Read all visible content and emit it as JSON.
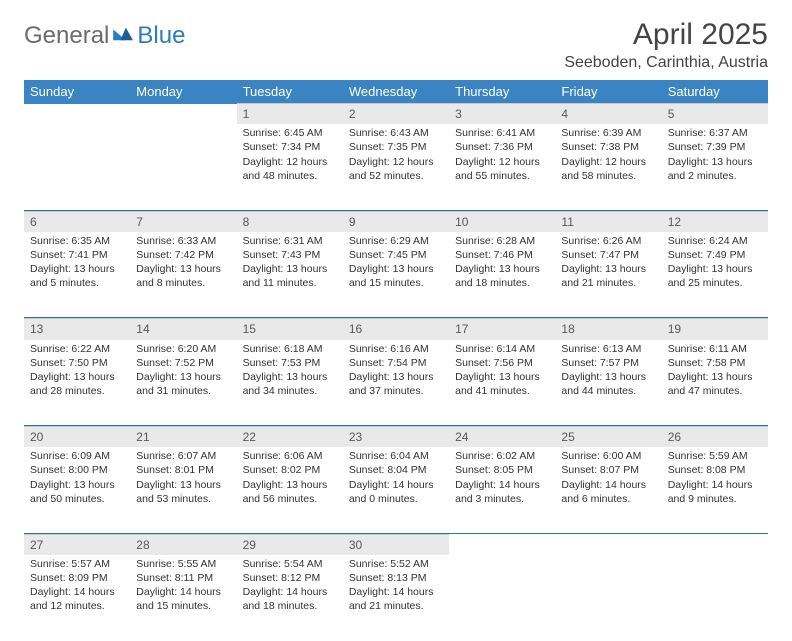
{
  "branding": {
    "word1": "General",
    "word2": "Blue"
  },
  "title": "April 2025",
  "location": "Seeboden, Carinthia, Austria",
  "colors": {
    "header_bg": "#3b84c4",
    "header_text": "#ffffff",
    "daynum_bg": "#e9e9e9",
    "week_separator": "#2f6ea6",
    "logo_grey": "#6b6b6b",
    "logo_blue": "#2f7bbf"
  },
  "day_headers": [
    "Sunday",
    "Monday",
    "Tuesday",
    "Wednesday",
    "Thursday",
    "Friday",
    "Saturday"
  ],
  "weeks": [
    [
      null,
      null,
      {
        "n": "1",
        "sr": "Sunrise: 6:45 AM",
        "ss": "Sunset: 7:34 PM",
        "dl": "Daylight: 12 hours and 48 minutes."
      },
      {
        "n": "2",
        "sr": "Sunrise: 6:43 AM",
        "ss": "Sunset: 7:35 PM",
        "dl": "Daylight: 12 hours and 52 minutes."
      },
      {
        "n": "3",
        "sr": "Sunrise: 6:41 AM",
        "ss": "Sunset: 7:36 PM",
        "dl": "Daylight: 12 hours and 55 minutes."
      },
      {
        "n": "4",
        "sr": "Sunrise: 6:39 AM",
        "ss": "Sunset: 7:38 PM",
        "dl": "Daylight: 12 hours and 58 minutes."
      },
      {
        "n": "5",
        "sr": "Sunrise: 6:37 AM",
        "ss": "Sunset: 7:39 PM",
        "dl": "Daylight: 13 hours and 2 minutes."
      }
    ],
    [
      {
        "n": "6",
        "sr": "Sunrise: 6:35 AM",
        "ss": "Sunset: 7:41 PM",
        "dl": "Daylight: 13 hours and 5 minutes."
      },
      {
        "n": "7",
        "sr": "Sunrise: 6:33 AM",
        "ss": "Sunset: 7:42 PM",
        "dl": "Daylight: 13 hours and 8 minutes."
      },
      {
        "n": "8",
        "sr": "Sunrise: 6:31 AM",
        "ss": "Sunset: 7:43 PM",
        "dl": "Daylight: 13 hours and 11 minutes."
      },
      {
        "n": "9",
        "sr": "Sunrise: 6:29 AM",
        "ss": "Sunset: 7:45 PM",
        "dl": "Daylight: 13 hours and 15 minutes."
      },
      {
        "n": "10",
        "sr": "Sunrise: 6:28 AM",
        "ss": "Sunset: 7:46 PM",
        "dl": "Daylight: 13 hours and 18 minutes."
      },
      {
        "n": "11",
        "sr": "Sunrise: 6:26 AM",
        "ss": "Sunset: 7:47 PM",
        "dl": "Daylight: 13 hours and 21 minutes."
      },
      {
        "n": "12",
        "sr": "Sunrise: 6:24 AM",
        "ss": "Sunset: 7:49 PM",
        "dl": "Daylight: 13 hours and 25 minutes."
      }
    ],
    [
      {
        "n": "13",
        "sr": "Sunrise: 6:22 AM",
        "ss": "Sunset: 7:50 PM",
        "dl": "Daylight: 13 hours and 28 minutes."
      },
      {
        "n": "14",
        "sr": "Sunrise: 6:20 AM",
        "ss": "Sunset: 7:52 PM",
        "dl": "Daylight: 13 hours and 31 minutes."
      },
      {
        "n": "15",
        "sr": "Sunrise: 6:18 AM",
        "ss": "Sunset: 7:53 PM",
        "dl": "Daylight: 13 hours and 34 minutes."
      },
      {
        "n": "16",
        "sr": "Sunrise: 6:16 AM",
        "ss": "Sunset: 7:54 PM",
        "dl": "Daylight: 13 hours and 37 minutes."
      },
      {
        "n": "17",
        "sr": "Sunrise: 6:14 AM",
        "ss": "Sunset: 7:56 PM",
        "dl": "Daylight: 13 hours and 41 minutes."
      },
      {
        "n": "18",
        "sr": "Sunrise: 6:13 AM",
        "ss": "Sunset: 7:57 PM",
        "dl": "Daylight: 13 hours and 44 minutes."
      },
      {
        "n": "19",
        "sr": "Sunrise: 6:11 AM",
        "ss": "Sunset: 7:58 PM",
        "dl": "Daylight: 13 hours and 47 minutes."
      }
    ],
    [
      {
        "n": "20",
        "sr": "Sunrise: 6:09 AM",
        "ss": "Sunset: 8:00 PM",
        "dl": "Daylight: 13 hours and 50 minutes."
      },
      {
        "n": "21",
        "sr": "Sunrise: 6:07 AM",
        "ss": "Sunset: 8:01 PM",
        "dl": "Daylight: 13 hours and 53 minutes."
      },
      {
        "n": "22",
        "sr": "Sunrise: 6:06 AM",
        "ss": "Sunset: 8:02 PM",
        "dl": "Daylight: 13 hours and 56 minutes."
      },
      {
        "n": "23",
        "sr": "Sunrise: 6:04 AM",
        "ss": "Sunset: 8:04 PM",
        "dl": "Daylight: 14 hours and 0 minutes."
      },
      {
        "n": "24",
        "sr": "Sunrise: 6:02 AM",
        "ss": "Sunset: 8:05 PM",
        "dl": "Daylight: 14 hours and 3 minutes."
      },
      {
        "n": "25",
        "sr": "Sunrise: 6:00 AM",
        "ss": "Sunset: 8:07 PM",
        "dl": "Daylight: 14 hours and 6 minutes."
      },
      {
        "n": "26",
        "sr": "Sunrise: 5:59 AM",
        "ss": "Sunset: 8:08 PM",
        "dl": "Daylight: 14 hours and 9 minutes."
      }
    ],
    [
      {
        "n": "27",
        "sr": "Sunrise: 5:57 AM",
        "ss": "Sunset: 8:09 PM",
        "dl": "Daylight: 14 hours and 12 minutes."
      },
      {
        "n": "28",
        "sr": "Sunrise: 5:55 AM",
        "ss": "Sunset: 8:11 PM",
        "dl": "Daylight: 14 hours and 15 minutes."
      },
      {
        "n": "29",
        "sr": "Sunrise: 5:54 AM",
        "ss": "Sunset: 8:12 PM",
        "dl": "Daylight: 14 hours and 18 minutes."
      },
      {
        "n": "30",
        "sr": "Sunrise: 5:52 AM",
        "ss": "Sunset: 8:13 PM",
        "dl": "Daylight: 14 hours and 21 minutes."
      },
      null,
      null,
      null
    ]
  ]
}
